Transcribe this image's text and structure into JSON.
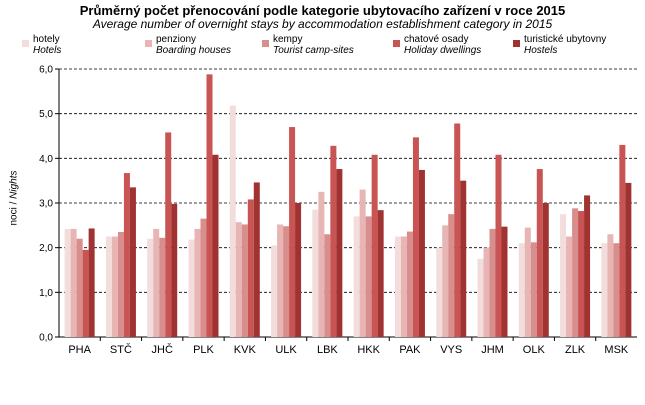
{
  "chart_data": {
    "type": "bar",
    "title": "Průměrný počet přenocování  podle kategorie  ubytovacího  zařízení v roce 2015",
    "subtitle": "Average number of overnight  stays by accommodation establishment category in 2015",
    "ylabel_cz": "noci / ",
    "ylabel_en": "Nights",
    "ylim": [
      0,
      6
    ],
    "yticks": [
      "0,0",
      "1,0",
      "2,0",
      "3,0",
      "4,0",
      "5,0",
      "6,0"
    ],
    "grid": "horizontal-dashed",
    "legend_position": "top",
    "categories": [
      "PHA",
      "STČ",
      "JHČ",
      "PLK",
      "KVK",
      "ULK",
      "LBK",
      "HKK",
      "PAK",
      "VYS",
      "JHM",
      "OLK",
      "ZLK",
      "MSK"
    ],
    "series": [
      {
        "name": "hotely",
        "name_en": "Hotels",
        "color": "#f3dcdc",
        "values": [
          2.42,
          2.25,
          2.2,
          2.18,
          5.18,
          2.05,
          2.85,
          2.7,
          2.25,
          2.0,
          1.75,
          2.1,
          2.75,
          2.1
        ]
      },
      {
        "name": "penziony",
        "name_en": "Boarding houses",
        "color": "#e8b5b5",
        "values": [
          2.42,
          2.25,
          2.42,
          2.42,
          2.57,
          2.52,
          3.25,
          3.3,
          2.25,
          2.5,
          2.0,
          2.45,
          2.25,
          2.3
        ]
      },
      {
        "name": "kempy",
        "name_en": "Tourist camp-sites",
        "color": "#d98e8e",
        "values": [
          2.2,
          2.35,
          2.22,
          2.65,
          2.52,
          2.48,
          2.3,
          2.7,
          2.36,
          2.75,
          2.42,
          2.12,
          2.88,
          2.1
        ]
      },
      {
        "name": "chatové osady",
        "name_en": "Holiday dwellings",
        "color": "#c85454",
        "values": [
          1.95,
          3.67,
          4.58,
          5.88,
          3.08,
          4.7,
          4.28,
          4.08,
          4.47,
          4.78,
          4.08,
          3.76,
          2.82,
          4.3
        ]
      },
      {
        "name": "turistické ubytovny",
        "name_en": "Hostels",
        "color": "#a03232",
        "values": [
          2.43,
          3.35,
          2.98,
          4.08,
          3.46,
          3.0,
          3.76,
          2.84,
          3.74,
          3.5,
          2.47,
          3.0,
          3.17,
          3.45
        ]
      }
    ]
  }
}
